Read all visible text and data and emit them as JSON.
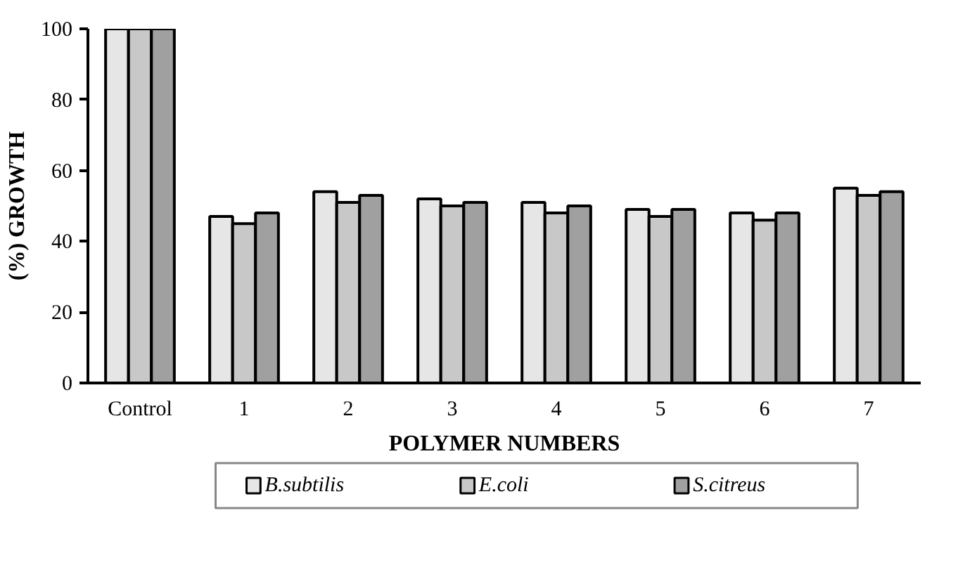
{
  "chart_data": {
    "type": "bar",
    "xlabel": "POLYMER NUMBERS",
    "ylabel": "(%) GROWTH",
    "categories": [
      "Control",
      "1",
      "2",
      "3",
      "4",
      "5",
      "6",
      "7"
    ],
    "series": [
      {
        "name": "B.subtilis",
        "color": "#e6e6e6",
        "values": [
          100,
          47,
          54,
          52,
          51,
          49,
          48,
          55
        ]
      },
      {
        "name": "E.coli",
        "color": "#c8c8c8",
        "values": [
          100,
          45,
          51,
          50,
          48,
          47,
          46,
          53
        ]
      },
      {
        "name": "S.citreus",
        "color": "#a0a0a0",
        "values": [
          100,
          48,
          53,
          51,
          50,
          49,
          48,
          54
        ]
      }
    ],
    "ylim": [
      0,
      100
    ],
    "yticks": [
      0,
      20,
      40,
      60,
      80,
      100
    ],
    "grid": false,
    "legend": "bottom"
  }
}
